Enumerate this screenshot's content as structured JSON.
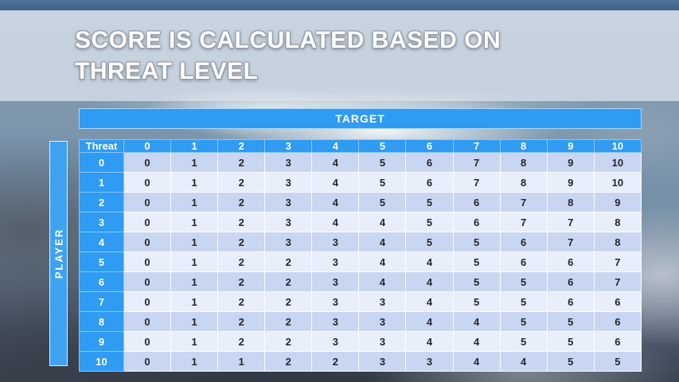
{
  "slide": {
    "title_line1": "SCORE IS CALCULATED BASED ON",
    "title_line2": "THREAT LEVEL"
  },
  "matrix": {
    "target_label": "TARGET",
    "player_label": "PLAYER",
    "corner_label": "Threat",
    "column_headers": [
      "0",
      "1",
      "2",
      "3",
      "4",
      "5",
      "6",
      "7",
      "8",
      "9",
      "10"
    ],
    "row_headers": [
      "0",
      "1",
      "2",
      "3",
      "4",
      "5",
      "6",
      "7",
      "8",
      "9",
      "10"
    ],
    "scores": [
      [
        0,
        1,
        2,
        3,
        4,
        5,
        6,
        7,
        8,
        9,
        10
      ],
      [
        0,
        1,
        2,
        3,
        4,
        5,
        6,
        7,
        8,
        9,
        10
      ],
      [
        0,
        1,
        2,
        3,
        4,
        5,
        5,
        6,
        7,
        8,
        9
      ],
      [
        0,
        1,
        2,
        3,
        4,
        4,
        5,
        6,
        7,
        7,
        8
      ],
      [
        0,
        1,
        2,
        3,
        3,
        4,
        5,
        5,
        6,
        7,
        8
      ],
      [
        0,
        1,
        2,
        2,
        3,
        4,
        4,
        5,
        6,
        6,
        7
      ],
      [
        0,
        1,
        2,
        2,
        3,
        4,
        4,
        5,
        5,
        6,
        7
      ],
      [
        0,
        1,
        2,
        2,
        3,
        3,
        4,
        5,
        5,
        6,
        6
      ],
      [
        0,
        1,
        2,
        2,
        3,
        3,
        4,
        4,
        5,
        5,
        6
      ],
      [
        0,
        1,
        2,
        2,
        3,
        3,
        4,
        4,
        5,
        5,
        6
      ],
      [
        0,
        1,
        1,
        2,
        2,
        3,
        3,
        4,
        4,
        5,
        5
      ]
    ]
  },
  "colors": {
    "accent_blue": "#2f9bf3",
    "player_bar_blue": "#3fa2f0",
    "row_dark": "#c9d6f2",
    "row_light": "#e9eefb",
    "top_bar": "#3e628a",
    "title_text": "#ffffff",
    "cell_text": "#23262f"
  }
}
